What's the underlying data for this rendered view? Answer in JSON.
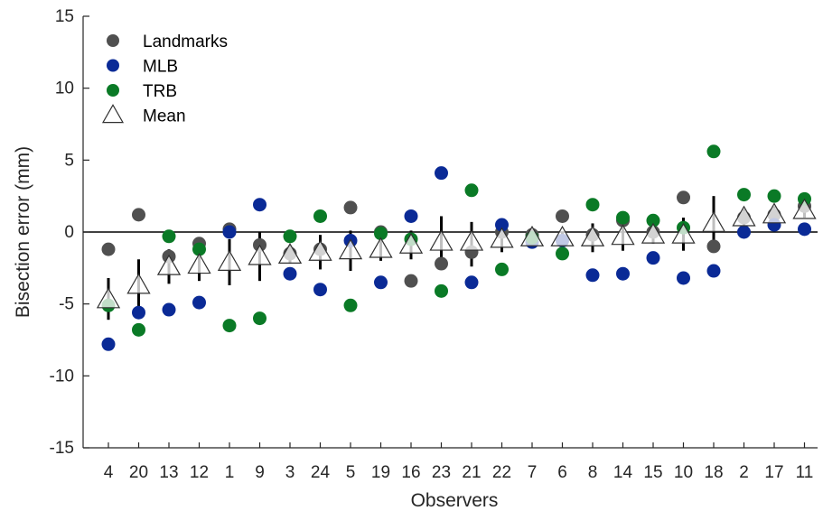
{
  "chart_data": {
    "type": "scatter",
    "xlabel": "Observers",
    "ylabel": "Bisection error (mm)",
    "ylim": [
      -15,
      15
    ],
    "yticks": [
      -15,
      -10,
      -5,
      0,
      5,
      10,
      15
    ],
    "zero_line": true,
    "grid": false,
    "legend_position": "top-left",
    "categories": [
      "4",
      "20",
      "13",
      "12",
      "1",
      "9",
      "3",
      "24",
      "5",
      "19",
      "16",
      "23",
      "21",
      "22",
      "7",
      "6",
      "8",
      "14",
      "15",
      "10",
      "18",
      "2",
      "17",
      "11"
    ],
    "series": [
      {
        "name": "Landmarks",
        "marker": "circle",
        "color": "#505050",
        "values": [
          -1.2,
          1.2,
          -1.7,
          -0.8,
          0.2,
          -0.9,
          -1.5,
          -1.2,
          1.7,
          0.0,
          -3.4,
          -2.2,
          -1.4,
          0.0,
          -0.2,
          1.1,
          -0.2,
          0.8,
          0.0,
          2.4,
          -1.0,
          1.0,
          1.2,
          1.8
        ]
      },
      {
        "name": "MLB",
        "marker": "circle",
        "color": "#0a2a96",
        "values": [
          -7.8,
          -5.6,
          -5.4,
          -4.9,
          0.0,
          1.9,
          -2.9,
          -4.0,
          -0.6,
          -3.5,
          1.1,
          4.1,
          -3.5,
          0.5,
          -0.7,
          -0.6,
          -3.0,
          -2.9,
          -1.8,
          -3.2,
          -2.7,
          0.0,
          0.5,
          0.2
        ]
      },
      {
        "name": "TRB",
        "marker": "circle",
        "color": "#0a7a26",
        "values": [
          -5.1,
          -6.8,
          -0.3,
          -1.2,
          -6.5,
          -6.0,
          -0.3,
          1.1,
          -5.1,
          -0.1,
          -0.5,
          -4.1,
          2.9,
          -2.6,
          -0.4,
          -1.5,
          1.9,
          1.0,
          0.8,
          0.3,
          5.6,
          2.6,
          2.5,
          2.3
        ]
      },
      {
        "name": "Mean",
        "marker": "triangle-open",
        "color": "#000000",
        "values": [
          -4.7,
          -3.7,
          -2.4,
          -2.3,
          -2.1,
          -1.7,
          -1.6,
          -1.4,
          -1.3,
          -1.2,
          -0.9,
          -0.7,
          -0.7,
          -0.5,
          -0.4,
          -0.4,
          -0.4,
          -0.3,
          -0.2,
          -0.2,
          0.6,
          1.0,
          1.2,
          1.5
        ],
        "error_low": [
          -6.1,
          -5.5,
          -3.6,
          -3.4,
          -3.7,
          -3.4,
          -2.2,
          -2.6,
          -2.7,
          -2.0,
          -1.9,
          -2.5,
          -2.4,
          -1.4,
          -0.5,
          -0.8,
          -1.4,
          -1.3,
          -0.8,
          -1.3,
          -1.3,
          0.4,
          0.6,
          1.0
        ],
        "error_high": [
          -3.2,
          -1.9,
          -1.2,
          -1.2,
          -0.5,
          0.0,
          -0.9,
          -0.2,
          0.1,
          -0.4,
          0.1,
          1.1,
          0.7,
          0.4,
          -0.3,
          0.0,
          0.6,
          0.7,
          0.4,
          1.0,
          2.5,
          1.6,
          1.8,
          2.0
        ]
      }
    ]
  }
}
